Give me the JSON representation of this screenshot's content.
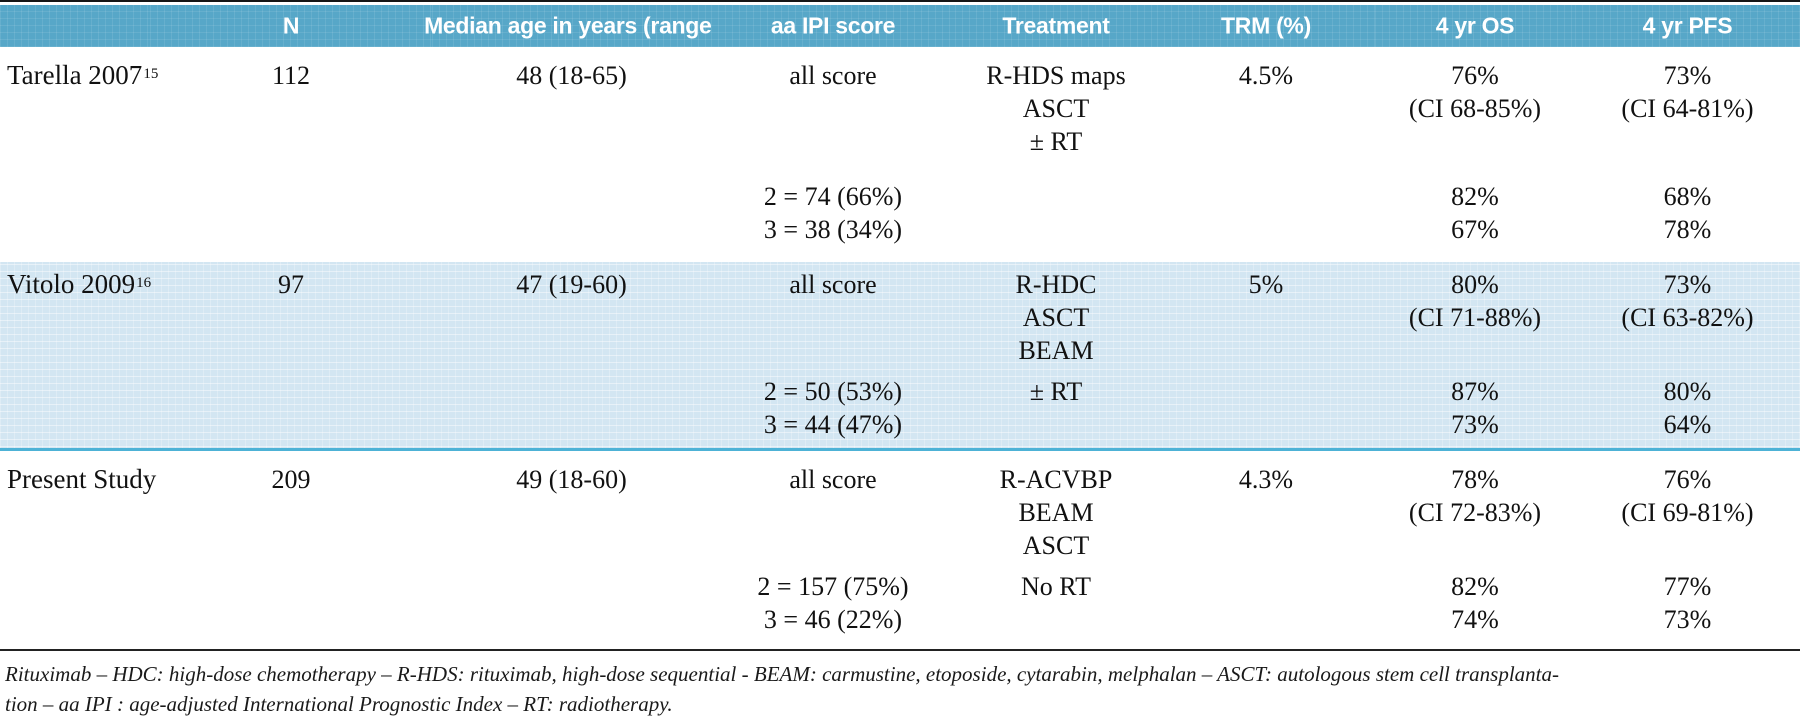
{
  "header": {
    "columns": {
      "study": "",
      "n": "N",
      "age": "Median age in years (range)",
      "ipi": "aa IPI score",
      "treatment": "Treatment",
      "trm": "TRM (%)",
      "os": "4 yr OS",
      "pfs": "4 yr PFS"
    }
  },
  "studies": [
    {
      "name": "Tarella 2007",
      "ref": "15",
      "n": "112",
      "median_age": "48 (18-65)",
      "ipi": {
        "all": "all score",
        "score2": "2 = 74 (66%)",
        "score3": "3 = 38 (34%)"
      },
      "treatment": {
        "line1": "R-HDS maps",
        "line2": "ASCT",
        "line3": "± RT",
        "line4": ""
      },
      "trm": "4.5%",
      "os": {
        "all": "76%",
        "ci": "(CI 68-85%)",
        "score2": "82%",
        "score3": "67%"
      },
      "pfs": {
        "all": "73%",
        "ci": "(CI 64-81%)",
        "score2": "68%",
        "score3": "78%"
      }
    },
    {
      "name": "Vitolo 2009",
      "ref": "16",
      "n": "97",
      "median_age": "47 (19-60)",
      "ipi": {
        "all": "all score",
        "score2": "2 = 50 (53%)",
        "score3": "3 = 44 (47%)"
      },
      "treatment": {
        "line1": "R-HDC",
        "line2": "ASCT",
        "line3": "BEAM",
        "line4": "± RT"
      },
      "trm": "5%",
      "os": {
        "all": "80%",
        "ci": "(CI 71-88%)",
        "score2": "87%",
        "score3": "73%"
      },
      "pfs": {
        "all": "73%",
        "ci": "(CI 63-82%)",
        "score2": "80%",
        "score3": "64%"
      }
    },
    {
      "name": "Present Study",
      "ref": "",
      "n": "209",
      "median_age": "49 (18-60)",
      "ipi": {
        "all": "all score",
        "score2": "2 = 157 (75%)",
        "score3": "3 = 46 (22%)"
      },
      "treatment": {
        "line1": "R-ACVBP",
        "line2": "BEAM",
        "line3": "ASCT",
        "line4": "No RT"
      },
      "trm": "4.3%",
      "os": {
        "all": "78%",
        "ci": "(CI 72-83%)",
        "score2": "82%",
        "score3": "74%"
      },
      "pfs": {
        "all": "76%",
        "ci": "(CI 69-81%)",
        "score2": "77%",
        "score3": "73%"
      }
    }
  ],
  "footnote": {
    "line1": "Rituximab – HDC: high-dose chemotherapy – R-HDS: rituximab, high-dose sequential - BEAM: carmustine, etoposide, cytarabin, melphalan – ASCT: autologous stem cell transplanta-",
    "line2": "tion – aa IPI : age-adjusted International Prognostic Index – RT: radiotherapy."
  },
  "colors": {
    "header_bg": "#57a7c8",
    "header_text": "#ffffff",
    "highlight_row_bg": "#d3e6f2",
    "highlight_bottom_border": "#4db2d6",
    "top_rule": "#161616",
    "footnote_rule": "#222222",
    "body_text": "#111111"
  }
}
